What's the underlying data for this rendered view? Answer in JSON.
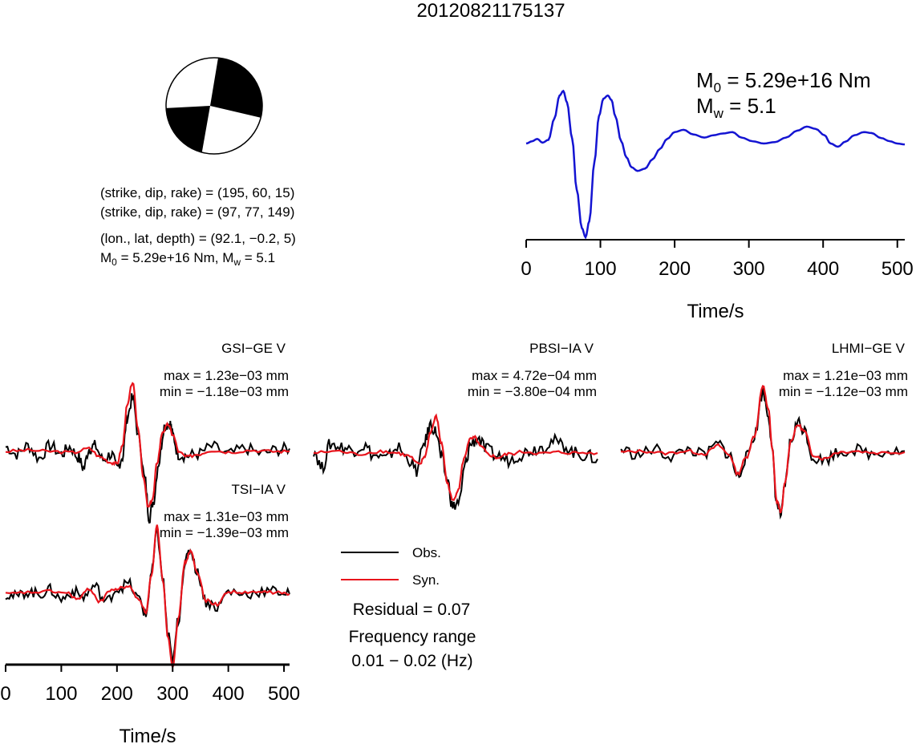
{
  "event_id": "20120821175137",
  "colors": {
    "observed": "#000000",
    "synthetic": "#e8141c",
    "stf": "#1414d2",
    "beachball": "#000000"
  },
  "solution": {
    "np1_label": "(strike, dip, rake) = (195, 60, 15)",
    "np2_label": "(strike, dip, rake) = (97, 77, 149)",
    "location_label": "(lon., lat, depth) = (92.1, −0.2, 5)",
    "moment_label_prefix": "M",
    "moment_label_sub0": "0",
    "moment_label_mid": " = 5.29e+16 Nm, M",
    "moment_label_subw": "w",
    "moment_label_end": " = 5.1",
    "nodal_plane_1": {
      "strike": 195,
      "dip": 60,
      "rake": 15
    },
    "nodal_plane_2": {
      "strike": 97,
      "dip": 77,
      "rake": 149
    }
  },
  "stf_panel": {
    "m0_prefix": "M",
    "m0_sub": "0",
    "m0_value": " = 5.29e+16 Nm",
    "mw_prefix": "M",
    "mw_sub": "w",
    "mw_value": " = 5.1",
    "xlabel": "Time/s"
  },
  "waveform_axis": {
    "xlabel": "Time/s"
  },
  "legend": {
    "observed_label": "Obs.",
    "synthetic_label": "Syn.",
    "residual_label": "Residual = 0.07",
    "freq_label": "Frequency range",
    "freq_value": "0.01 − 0.02 (Hz)"
  },
  "chart_data": [
    {
      "type": "line",
      "name": "source_time_function",
      "xlim": [
        0,
        510
      ],
      "xticks": [
        0,
        100,
        200,
        300,
        400,
        500
      ],
      "xlabel": "Time/s",
      "series": [
        {
          "name": "",
          "x": [
            0,
            8,
            15,
            22,
            30,
            38,
            45,
            50,
            55,
            62,
            68,
            75,
            80,
            85,
            92,
            98,
            104,
            110,
            115,
            120,
            128,
            135,
            142,
            150,
            160,
            170,
            180,
            190,
            200,
            212,
            225,
            240,
            252,
            265,
            278,
            290,
            305,
            320,
            335,
            350,
            365,
            378,
            390,
            402,
            410,
            420,
            430,
            442,
            455,
            465,
            478,
            490,
            500,
            510
          ],
          "y": [
            0.0,
            0.05,
            0.1,
            0.02,
            0.08,
            0.55,
            1.05,
            1.15,
            0.9,
            0.1,
            -1.0,
            -1.85,
            -2.05,
            -1.7,
            -0.4,
            0.6,
            0.98,
            1.05,
            0.95,
            0.6,
            0.05,
            -0.3,
            -0.52,
            -0.6,
            -0.55,
            -0.35,
            -0.12,
            0.1,
            0.25,
            0.3,
            0.2,
            0.13,
            0.18,
            0.22,
            0.25,
            0.13,
            0.05,
            0.0,
            0.03,
            0.13,
            0.28,
            0.37,
            0.32,
            0.18,
            0.0,
            -0.07,
            0.04,
            0.18,
            0.25,
            0.23,
            0.12,
            0.05,
            0.0,
            -0.02
          ]
        }
      ]
    },
    {
      "type": "line",
      "name": "GSI-GE V",
      "station": "GSI−GE V",
      "max_label": "max = 1.23e−03 mm",
      "min_label": "min = −1.18e−03 mm",
      "xlim": [
        0,
        510
      ],
      "series": [
        {
          "name": "Obs.",
          "x": [
            0,
            20,
            40,
            60,
            80,
            100,
            115,
            130,
            140,
            150,
            160,
            175,
            190,
            200,
            210,
            218,
            228,
            240,
            250,
            258,
            265,
            275,
            285,
            295,
            300,
            310,
            325,
            345,
            370,
            400,
            430,
            460,
            490,
            510
          ],
          "y": [
            0.08,
            -0.05,
            0.1,
            -0.12,
            0.1,
            -0.05,
            0.08,
            -0.1,
            -0.3,
            0.05,
            0.1,
            -0.15,
            -0.05,
            -0.3,
            -0.1,
            0.6,
            0.95,
            0.2,
            -0.5,
            -1.18,
            -0.9,
            -0.2,
            0.45,
            0.5,
            0.3,
            -0.05,
            -0.08,
            -0.05,
            0.08,
            -0.05,
            0.05,
            -0.04,
            0.03,
            0.05
          ]
        },
        {
          "name": "Syn.",
          "x": [
            0,
            40,
            80,
            120,
            150,
            170,
            190,
            200,
            210,
            218,
            228,
            238,
            248,
            256,
            264,
            272,
            282,
            292,
            300,
            312,
            325,
            345,
            370,
            400,
            440,
            480,
            510
          ],
          "y": [
            0.0,
            0.02,
            0.0,
            -0.02,
            0.05,
            -0.1,
            -0.2,
            -0.22,
            0.1,
            0.8,
            1.23,
            0.4,
            -0.5,
            -1.0,
            -0.85,
            -0.2,
            0.35,
            0.48,
            0.3,
            -0.02,
            -0.1,
            -0.05,
            0.02,
            -0.01,
            0.02,
            0.0,
            0.0
          ]
        }
      ]
    },
    {
      "type": "line",
      "name": "PBSI-IA V",
      "station": "PBSI−IA V",
      "max_label": "max = 4.72e−04 mm",
      "min_label": "min = −3.80e−04 mm",
      "xlim": [
        0,
        510
      ],
      "series": [
        {
          "name": "Obs.",
          "x": [
            0,
            15,
            30,
            50,
            70,
            90,
            110,
            130,
            150,
            170,
            185,
            200,
            210,
            220,
            230,
            240,
            250,
            262,
            272,
            282,
            295,
            310,
            330,
            350,
            370,
            390,
            410,
            430,
            450,
            470,
            490,
            510
          ],
          "y": [
            0.05,
            -0.25,
            0.15,
            0.1,
            0.05,
            0.12,
            -0.05,
            -0.1,
            0.1,
            -0.1,
            -0.3,
            0.2,
            0.47,
            0.35,
            -0.1,
            -0.45,
            -0.9,
            -0.8,
            -0.2,
            0.15,
            0.25,
            0.05,
            -0.05,
            -0.12,
            -0.03,
            0.05,
            0.1,
            0.2,
            0.12,
            0.0,
            -0.05,
            -0.1
          ]
        },
        {
          "name": "Syn.",
          "x": [
            0,
            40,
            80,
            120,
            150,
            170,
            190,
            200,
            210,
            220,
            230,
            240,
            250,
            260,
            270,
            280,
            290,
            300,
            315,
            330,
            350,
            380,
            410,
            440,
            470,
            510
          ],
          "y": [
            0.0,
            0.03,
            -0.02,
            0.03,
            0.0,
            -0.05,
            -0.2,
            -0.05,
            0.35,
            0.6,
            0.15,
            -0.5,
            -0.8,
            -0.6,
            -0.1,
            0.22,
            0.25,
            0.1,
            -0.03,
            -0.08,
            -0.02,
            0.02,
            -0.01,
            0.01,
            0.0,
            0.0
          ]
        }
      ]
    },
    {
      "type": "line",
      "name": "LHMI-GE V",
      "station": "LHMI−GE V",
      "max_label": "max = 1.21e−03 mm",
      "min_label": "min = −1.12e−03 mm",
      "xlim": [
        0,
        510
      ],
      "series": [
        {
          "name": "Obs.",
          "x": [
            0,
            30,
            60,
            90,
            120,
            150,
            175,
            195,
            210,
            225,
            240,
            255,
            265,
            272,
            280,
            288,
            295,
            305,
            318,
            330,
            345,
            365,
            390,
            420,
            450,
            480,
            510
          ],
          "y": [
            0.05,
            -0.05,
            0.05,
            -0.08,
            0.05,
            -0.05,
            0.15,
            -0.05,
            -0.45,
            -0.1,
            0.3,
            1.1,
            0.7,
            0.0,
            -0.95,
            -1.15,
            -0.6,
            0.2,
            0.55,
            0.4,
            -0.1,
            -0.15,
            0.0,
            0.05,
            -0.03,
            0.03,
            0.02
          ]
        },
        {
          "name": "Syn.",
          "x": [
            0,
            40,
            80,
            120,
            150,
            175,
            195,
            210,
            225,
            240,
            255,
            265,
            272,
            280,
            288,
            295,
            305,
            318,
            330,
            345,
            365,
            390,
            420,
            460,
            510
          ],
          "y": [
            0.0,
            0.02,
            -0.02,
            0.02,
            -0.03,
            0.12,
            -0.05,
            -0.4,
            -0.1,
            0.3,
            1.21,
            0.8,
            0.05,
            -0.9,
            -1.1,
            -0.55,
            0.2,
            0.5,
            0.38,
            -0.05,
            -0.12,
            0.0,
            0.02,
            -0.01,
            0.0
          ]
        }
      ]
    },
    {
      "type": "line",
      "name": "TSI-IA V",
      "station": "TSI−IA V",
      "max_label": "max = 1.31e−03 mm",
      "min_label": "min = −1.39e−03 mm",
      "xlim": [
        0,
        510
      ],
      "xticks": [
        0,
        100,
        200,
        300,
        400,
        500
      ],
      "xlabel": "Time/s",
      "series": [
        {
          "name": "Obs.",
          "x": [
            0,
            20,
            40,
            60,
            80,
            100,
            120,
            140,
            160,
            180,
            200,
            220,
            240,
            252,
            262,
            272,
            282,
            292,
            300,
            310,
            322,
            332,
            345,
            360,
            380,
            400,
            430,
            460,
            490,
            510
          ],
          "y": [
            0.0,
            -0.05,
            0.05,
            0.0,
            0.08,
            -0.1,
            0.05,
            -0.05,
            0.15,
            -0.15,
            0.1,
            0.2,
            -0.1,
            -0.4,
            0.4,
            1.2,
            0.3,
            -0.8,
            -1.3,
            -0.5,
            0.6,
            0.85,
            0.4,
            -0.15,
            -0.25,
            0.05,
            0.0,
            0.05,
            0.05,
            0.0
          ]
        },
        {
          "name": "Syn.",
          "x": [
            0,
            40,
            80,
            110,
            130,
            150,
            170,
            185,
            200,
            220,
            240,
            252,
            262,
            272,
            282,
            292,
            300,
            310,
            322,
            332,
            345,
            360,
            380,
            400,
            430,
            460,
            490,
            510
          ],
          "y": [
            0.0,
            0.03,
            0.05,
            0.02,
            -0.1,
            0.1,
            -0.15,
            0.05,
            0.1,
            0.15,
            -0.1,
            -0.35,
            0.35,
            1.31,
            0.3,
            -0.85,
            -1.39,
            -0.5,
            0.6,
            0.82,
            0.38,
            -0.12,
            -0.2,
            0.05,
            0.02,
            0.04,
            0.03,
            0.0
          ]
        }
      ]
    }
  ]
}
